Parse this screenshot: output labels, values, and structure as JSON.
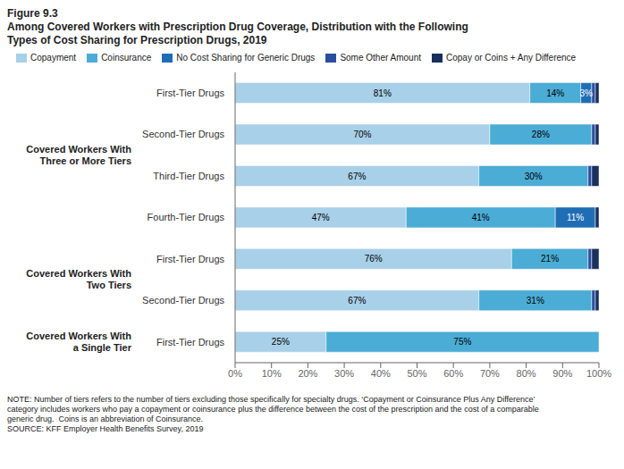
{
  "chart_data": {
    "type": "bar",
    "orientation": "horizontal",
    "stacked": true,
    "data_labels": true,
    "grid": false,
    "legend": "top",
    "title": "Figure 9.3\nAmong Covered Workers with Prescription Drug Coverage, Distribution with the Following\nTypes of Cost Sharing for Prescription Drugs, 2019",
    "groups": [
      {
        "label": "Covered Workers With\nThree or More Tiers",
        "categories": [
          "First-Tier Drugs",
          "Second-Tier Drugs",
          "Third-Tier Drugs",
          "Fourth-Tier Drugs"
        ]
      },
      {
        "label": "Covered Workers With\nTwo Tiers",
        "categories": [
          "First-Tier Drugs",
          "Second-Tier Drugs"
        ]
      },
      {
        "label": "Covered Workers With\na Single Tier",
        "categories": [
          "First-Tier Drugs"
        ]
      }
    ],
    "series": [
      {
        "name": "Copayment",
        "color": "#a8d0e8",
        "values": [
          81,
          70,
          67,
          47,
          76,
          67,
          25
        ],
        "value_labels": [
          "81%",
          "70%",
          "67%",
          "47%",
          "76%",
          "67%",
          "25%"
        ]
      },
      {
        "name": "Coinsurance",
        "color": "#4bacd6",
        "values": [
          14,
          28,
          30,
          41,
          21,
          31,
          75
        ],
        "value_labels": [
          "14%",
          "28%",
          "30%",
          "41%",
          "21%",
          "31%",
          "75%"
        ]
      },
      {
        "name": "No Cost Sharing for Generic Drugs",
        "color": "#1f6eb5",
        "values": [
          3,
          0,
          0,
          11,
          0,
          0,
          0
        ],
        "value_labels": [
          "3%",
          null,
          null,
          "11%",
          null,
          null,
          null
        ]
      },
      {
        "name": "Some Other Amount",
        "color": "#2a4f9e",
        "values": [
          1,
          1,
          1,
          0,
          1,
          1,
          0
        ]
      },
      {
        "name": "Copay or Coins + Any Difference",
        "color": "#1a2f5e",
        "values": [
          1,
          1,
          2,
          1,
          2,
          1,
          0
        ]
      }
    ],
    "xlim": [
      0,
      100
    ],
    "xticks": [
      {
        "value": 0,
        "label": "0%"
      },
      {
        "value": 10,
        "label": "10%"
      },
      {
        "value": 20,
        "label": "20%"
      },
      {
        "value": 30,
        "label": "30%"
      },
      {
        "value": 40,
        "label": "40%"
      },
      {
        "value": 50,
        "label": "50%"
      },
      {
        "value": 60,
        "label": "60%"
      },
      {
        "value": 70,
        "label": "70%"
      },
      {
        "value": 80,
        "label": "80%"
      },
      {
        "value": 90,
        "label": "90%"
      },
      {
        "value": 100,
        "label": "100%"
      }
    ],
    "annotations": [
      "NOTE: Number of tiers refers to the number of tiers excluding those specifically for specialty drugs. ‘Copayment or Coinsurance Plus Any Difference’",
      "category includes workers who pay a copayment or coinsurance plus the difference between the cost of the prescription and the cost of a comparable",
      "generic drug.  Coins is an abbreviation of Coinsurance.",
      "SOURCE: KFF Employer Health Benefits Survey, 2019"
    ]
  }
}
